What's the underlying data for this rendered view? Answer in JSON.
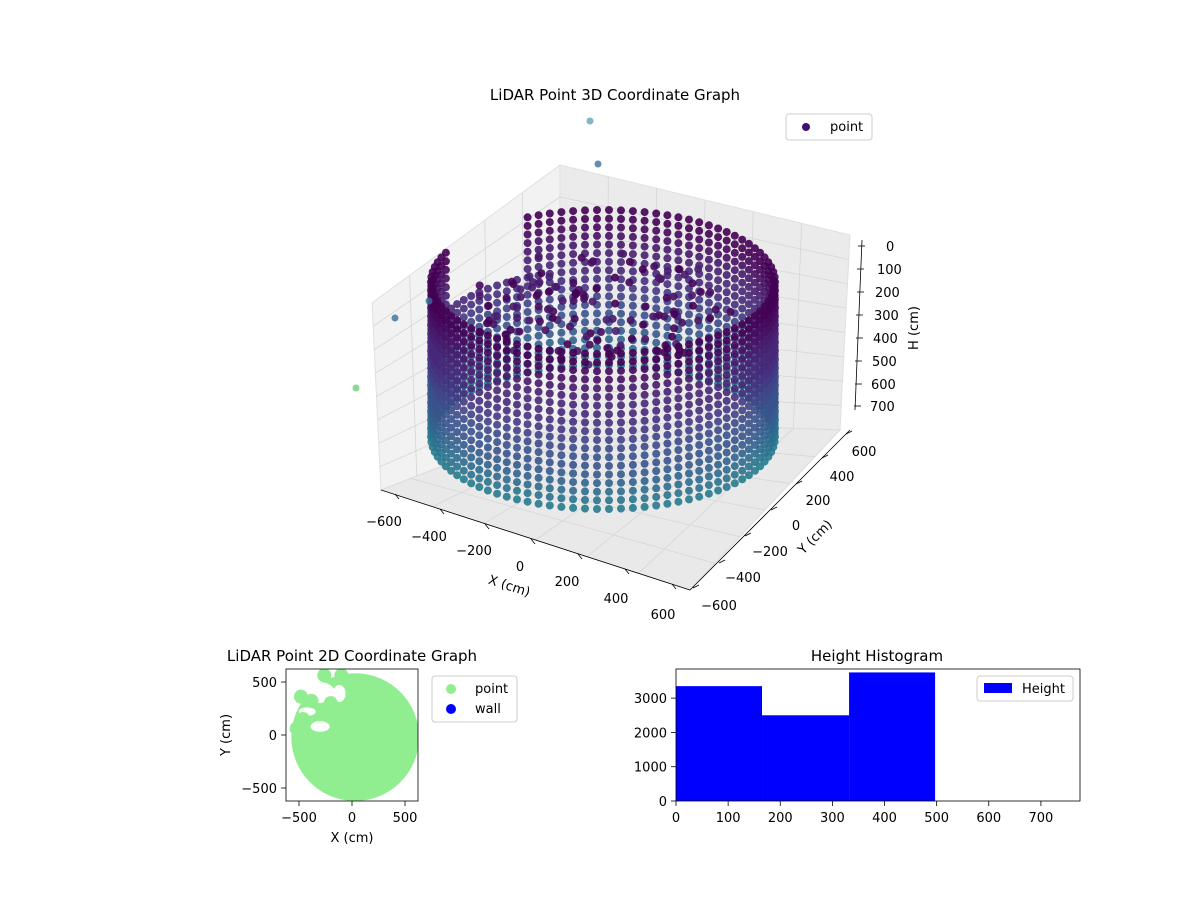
{
  "charts": {
    "c3d": {
      "type": "scatter3d",
      "title": "LiDAR Point 3D Coordinate Graph",
      "xlabel": "X (cm)",
      "ylabel": "Y (cm)",
      "zlabel": "H (cm)",
      "xticks": [
        "−600",
        "−400",
        "−200",
        "0",
        "200",
        "400",
        "600"
      ],
      "yticks": [
        "−600",
        "−400",
        "−200",
        "0",
        "200",
        "400",
        "600"
      ],
      "zticks": [
        "0",
        "100",
        "200",
        "300",
        "400",
        "500",
        "600",
        "700"
      ],
      "legend": {
        "label": "point",
        "color": "#440f6b",
        "position": "upper right"
      },
      "colormap": "viridis",
      "zlim": [
        750,
        0
      ]
    },
    "c2d": {
      "type": "scatter",
      "title": "LiDAR Point 2D Coordinate Graph",
      "xlabel": "X (cm)",
      "ylabel": "Y (cm)",
      "xticks": [
        "−500",
        "0",
        "500"
      ],
      "yticks": [
        "500",
        "0",
        "−500"
      ],
      "xlim": [
        -620,
        620
      ],
      "ylim": [
        -620,
        620
      ],
      "legend": [
        {
          "label": "point",
          "color": "#90ee90"
        },
        {
          "label": "wall",
          "color": "#0000ff"
        }
      ],
      "legend_position": "outside right"
    },
    "hist": {
      "type": "bar",
      "title": "Height Histogram",
      "xticks": [
        "0",
        "100",
        "200",
        "300",
        "400",
        "500",
        "600",
        "700"
      ],
      "yticks": [
        "0",
        "1000",
        "2000",
        "3000"
      ],
      "legend": {
        "label": "Height",
        "color": "#0000ff",
        "position": "upper right"
      },
      "xlim": [
        0,
        775
      ],
      "ylim": [
        0,
        3850
      ]
    }
  },
  "chart_data": [
    {
      "type": "scatter",
      "title": "LiDAR Point 3D Coordinate Graph",
      "xlabel": "X (cm)",
      "ylabel": "Y (cm)",
      "zlabel": "H (cm)",
      "xlim": [
        -600,
        600
      ],
      "ylim": [
        -600,
        600
      ],
      "zlim": [
        750,
        0
      ],
      "series": [
        {
          "name": "point"
        }
      ],
      "description": "3D scatter of LiDAR points forming a cylindrical wall (radius ~550 cm, height ~0-500 cm) colored by viridis scale"
    },
    {
      "type": "scatter",
      "title": "LiDAR Point 2D Coordinate Graph",
      "xlabel": "X (cm)",
      "ylabel": "Y (cm)",
      "xlim": [
        -620,
        620
      ],
      "ylim": [
        -620,
        620
      ],
      "series": [
        {
          "name": "point"
        },
        {
          "name": "wall"
        }
      ]
    },
    {
      "type": "bar",
      "title": "Height Histogram",
      "bins": [
        [
          0,
          165
        ],
        [
          165,
          332
        ],
        [
          332,
          497
        ]
      ],
      "values": [
        3350,
        2500,
        3750
      ],
      "xlim": [
        0,
        775
      ],
      "ylim": [
        0,
        3850
      ],
      "series": [
        {
          "name": "Height",
          "values": [
            3350,
            2500,
            3750
          ]
        }
      ]
    }
  ]
}
